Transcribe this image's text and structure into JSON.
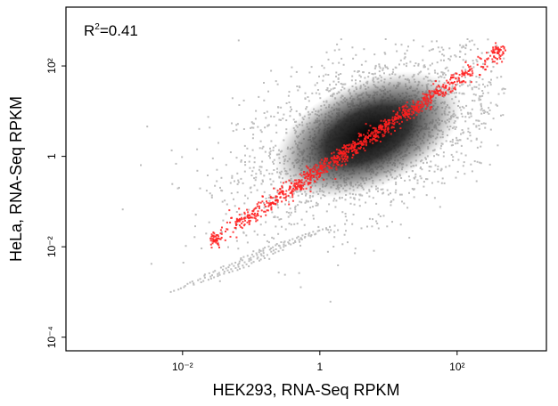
{
  "chart_data": {
    "type": "scatter",
    "log_scale": {
      "x": true,
      "y": true
    },
    "xlabel": "HEK293, RNA-Seq RPKM",
    "ylabel": "HeLa, RNA-Seq RPKM",
    "xlim": [
      0.0002,
      2000
    ],
    "ylim": [
      5e-05,
      2000
    ],
    "x_ticks": [
      {
        "value": 0.01,
        "label": "10⁻²"
      },
      {
        "value": 1,
        "label": "1"
      },
      {
        "value": 100,
        "label": "10²"
      }
    ],
    "y_ticks": [
      {
        "value": 0.0001,
        "label": "10⁻⁴"
      },
      {
        "value": 0.01,
        "label": "10⁻²"
      },
      {
        "value": 1,
        "label": "1"
      },
      {
        "value": 100,
        "label": "10²"
      }
    ],
    "annotation": {
      "r_label": "R",
      "r_sup": "2",
      "r_value": "=0.41"
    },
    "grid": false,
    "colors": {
      "points": "#bdbdbd",
      "density_core": "#000000",
      "fit_line": "#ff2020",
      "frame": "#000000"
    },
    "series": [
      {
        "kind": "gene-points",
        "color": "#bdbdbd",
        "density_peak": {
          "x": 5,
          "y": 3
        },
        "x_range": [
          0.0004,
          500
        ],
        "y_range": [
          0.0001,
          400
        ]
      },
      {
        "kind": "fit-trend",
        "color": "#ff2020",
        "points": [
          {
            "x": 0.03,
            "y": 0.015
          },
          {
            "x": 0.1,
            "y": 0.05
          },
          {
            "x": 1,
            "y": 0.5
          },
          {
            "x": 10,
            "y": 5
          },
          {
            "x": 100,
            "y": 50
          },
          {
            "x": 400,
            "y": 200
          }
        ]
      }
    ]
  }
}
